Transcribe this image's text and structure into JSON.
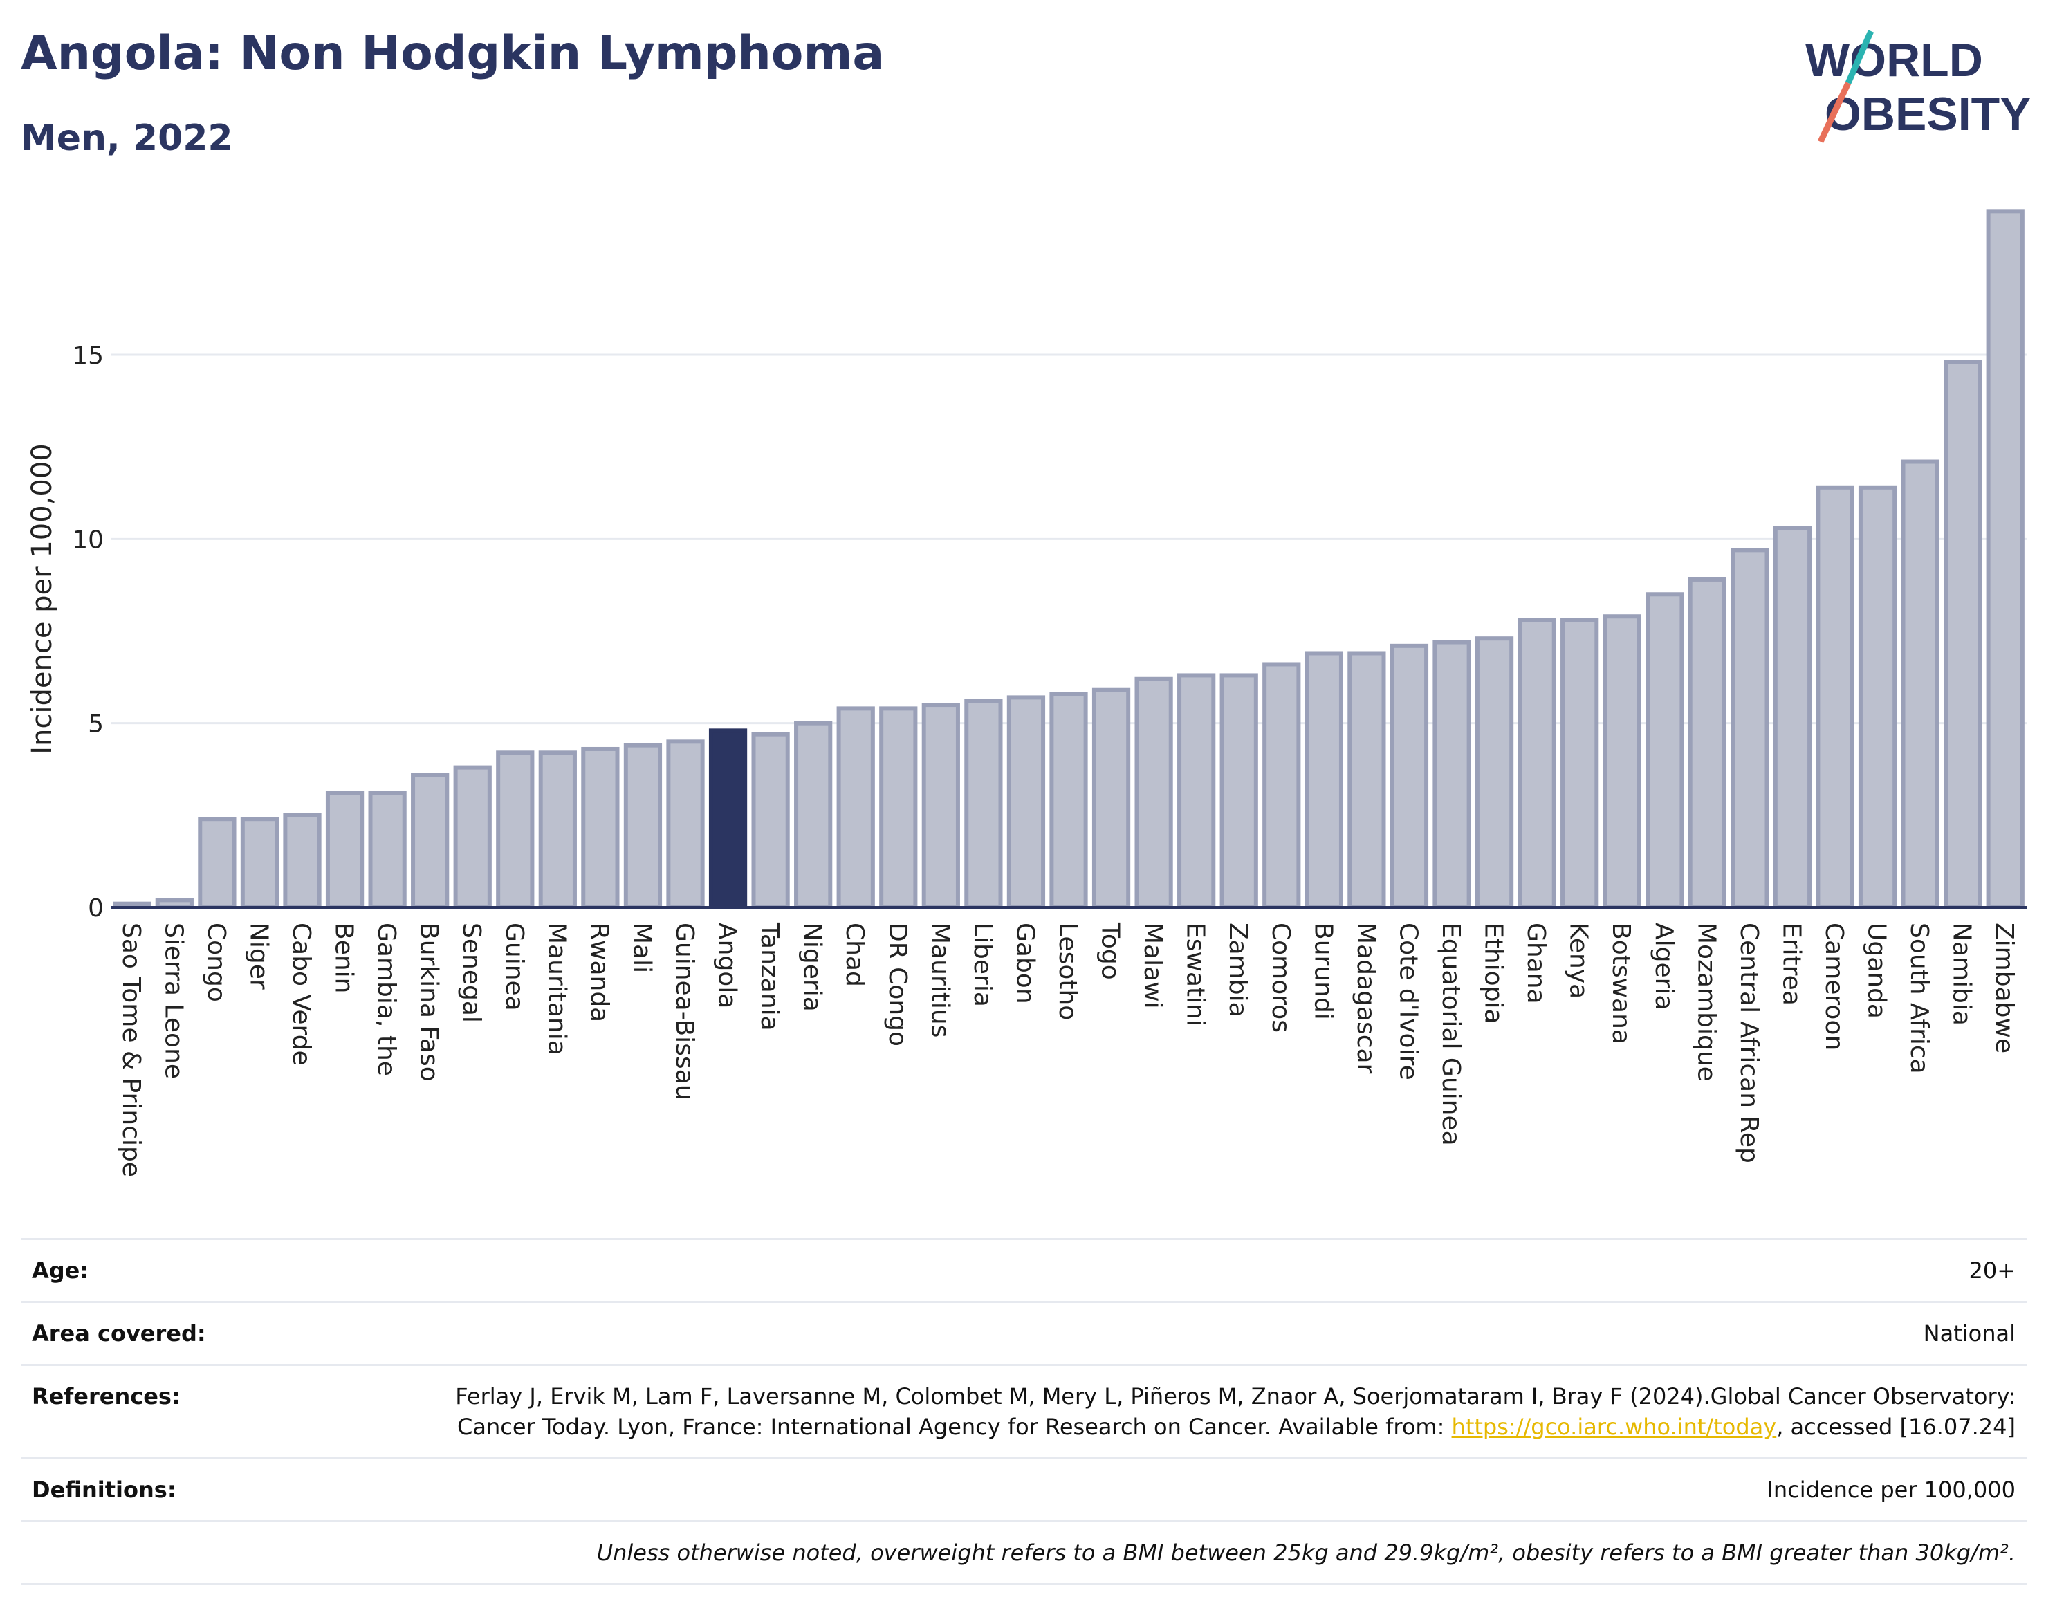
{
  "header": {
    "title": "Angola: Non Hodgkin Lymphoma",
    "subtitle": "Men, 2022"
  },
  "logo": {
    "line1": "WORLD",
    "line2": "OBESITY",
    "colors": {
      "text": "#2b3561",
      "slash_top": "#2bb3b1",
      "slash_bottom": "#e8705a"
    }
  },
  "colors": {
    "bar_fill": "#bcc0ce",
    "bar_stroke": "#9aa0b8",
    "highlight": "#2b3561",
    "grid": "#e6e9ef",
    "axis": "#2b3561"
  },
  "chart_data": {
    "type": "bar",
    "ylabel": "Incidence per 100,000",
    "ylim": [
      0,
      19
    ],
    "yticks": [
      0,
      5,
      10,
      15
    ],
    "grid": true,
    "highlight": "Angola",
    "categories": [
      "Sao Tome & Principe",
      "Sierra Leone",
      "Congo",
      "Niger",
      "Cabo Verde",
      "Benin",
      "Gambia, the",
      "Burkina Faso",
      "Senegal",
      "Guinea",
      "Mauritania",
      "Rwanda",
      "Mali",
      "Guinea-Bissau",
      "Angola",
      "Tanzania",
      "Nigeria",
      "Chad",
      "DR Congo",
      "Mauritius",
      "Liberia",
      "Gabon",
      "Lesotho",
      "Togo",
      "Malawi",
      "Eswatini",
      "Zambia",
      "Comoros",
      "Burundi",
      "Madagascar",
      "Cote d'Ivoire",
      "Equatorial Guinea",
      "Ethiopia",
      "Ghana",
      "Kenya",
      "Botswana",
      "Algeria",
      "Mozambique",
      "Central African Rep",
      "Eritrea",
      "Cameroon",
      "Uganda",
      "South Africa",
      "Namibia",
      "Zimbabwe"
    ],
    "values": [
      0.1,
      0.2,
      2.4,
      2.4,
      2.5,
      3.1,
      3.1,
      3.6,
      3.8,
      4.2,
      4.2,
      4.3,
      4.4,
      4.5,
      4.8,
      4.7,
      5.0,
      5.4,
      5.4,
      5.5,
      5.6,
      5.7,
      5.8,
      5.9,
      6.2,
      6.3,
      6.3,
      6.6,
      6.9,
      6.9,
      7.1,
      7.2,
      7.3,
      7.8,
      7.8,
      7.9,
      8.5,
      8.9,
      9.7,
      10.3,
      11.4,
      11.4,
      12.1,
      14.8,
      18.9
    ]
  },
  "meta": {
    "age_label": "Age:",
    "age_value": "20+",
    "area_label": "Area covered:",
    "area_value": "National",
    "references_label": "References:",
    "references_text_1": "Ferlay J, Ervik M, Lam F, Laversanne M, Colombet M, Mery L, Piñeros M, Znaor A, Soerjomataram I, Bray F (2024).Global Cancer Observatory: Cancer Today. Lyon, France: International Agency for Research on Cancer. Available from: ",
    "references_link": "https://gco.iarc.who.int/today",
    "references_text_2": ", accessed [16.07.24]",
    "definitions_label": "Definitions:",
    "definitions_value": "Incidence per 100,000",
    "note": "Unless otherwise noted, overweight refers to a BMI between 25kg and 29.9kg/m², obesity refers to a BMI greater than 30kg/m²."
  }
}
